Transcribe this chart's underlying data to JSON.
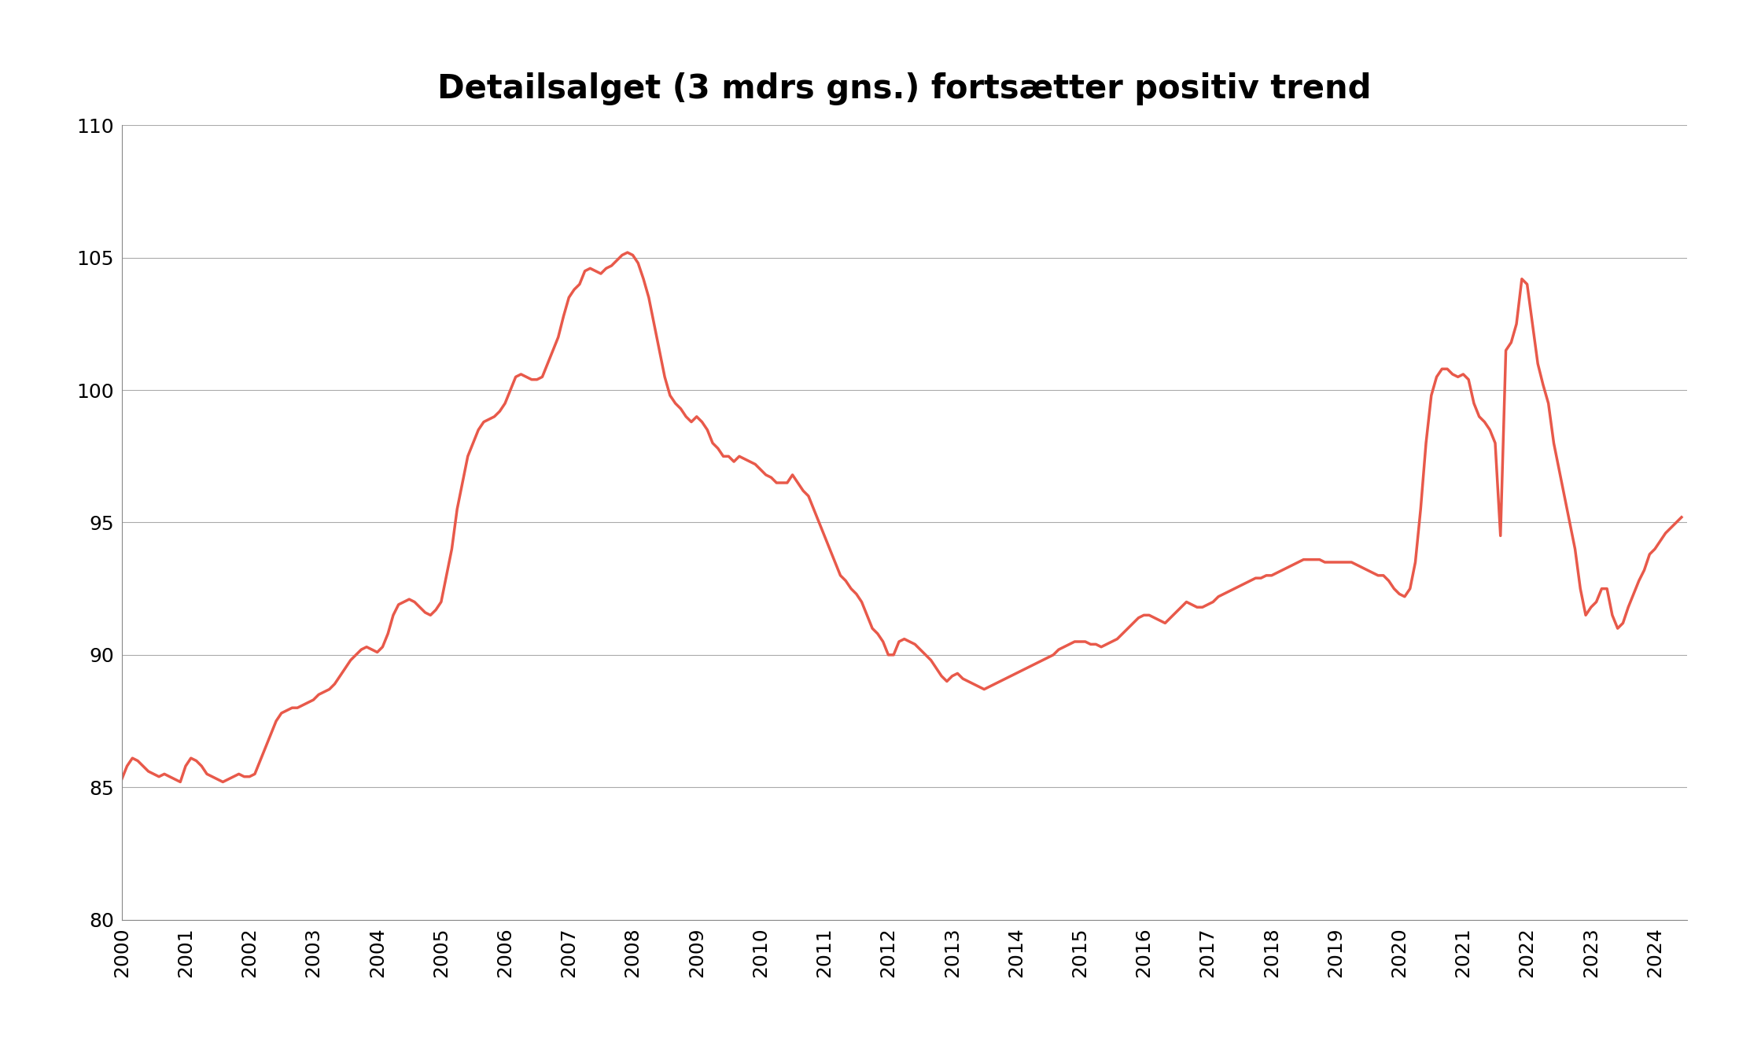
{
  "title": "Detailsalget (3 mdrs gns.) fortsætter positiv trend",
  "line_color": "#E8594A",
  "background_color": "#FFFFFF",
  "ylim": [
    80,
    110
  ],
  "yticks": [
    80,
    85,
    90,
    95,
    100,
    105,
    110
  ],
  "xlim_start": 2000.0,
  "xlim_end": 2024.5,
  "xtick_labels": [
    "2000",
    "2001",
    "2002",
    "2003",
    "2004",
    "2005",
    "2006",
    "2007",
    "2008",
    "2009",
    "2010",
    "2011",
    "2012",
    "2013",
    "2014",
    "2015",
    "2016",
    "2017",
    "2018",
    "2019",
    "2020",
    "2021",
    "2022",
    "2023",
    "2024"
  ],
  "title_fontsize": 30,
  "tick_fontsize": 18,
  "linewidth": 2.5,
  "series": [
    [
      2000.0,
      85.3
    ],
    [
      2000.083,
      85.8
    ],
    [
      2000.167,
      86.1
    ],
    [
      2000.25,
      86.0
    ],
    [
      2000.333,
      85.8
    ],
    [
      2000.417,
      85.6
    ],
    [
      2000.5,
      85.5
    ],
    [
      2000.583,
      85.4
    ],
    [
      2000.667,
      85.5
    ],
    [
      2000.75,
      85.4
    ],
    [
      2000.833,
      85.3
    ],
    [
      2000.917,
      85.2
    ],
    [
      2001.0,
      85.8
    ],
    [
      2001.083,
      86.1
    ],
    [
      2001.167,
      86.0
    ],
    [
      2001.25,
      85.8
    ],
    [
      2001.333,
      85.5
    ],
    [
      2001.417,
      85.4
    ],
    [
      2001.5,
      85.3
    ],
    [
      2001.583,
      85.2
    ],
    [
      2001.667,
      85.3
    ],
    [
      2001.75,
      85.4
    ],
    [
      2001.833,
      85.5
    ],
    [
      2001.917,
      85.4
    ],
    [
      2002.0,
      85.4
    ],
    [
      2002.083,
      85.5
    ],
    [
      2002.167,
      86.0
    ],
    [
      2002.25,
      86.5
    ],
    [
      2002.333,
      87.0
    ],
    [
      2002.417,
      87.5
    ],
    [
      2002.5,
      87.8
    ],
    [
      2002.583,
      87.9
    ],
    [
      2002.667,
      88.0
    ],
    [
      2002.75,
      88.0
    ],
    [
      2002.833,
      88.1
    ],
    [
      2002.917,
      88.2
    ],
    [
      2003.0,
      88.3
    ],
    [
      2003.083,
      88.5
    ],
    [
      2003.167,
      88.6
    ],
    [
      2003.25,
      88.7
    ],
    [
      2003.333,
      88.9
    ],
    [
      2003.417,
      89.2
    ],
    [
      2003.5,
      89.5
    ],
    [
      2003.583,
      89.8
    ],
    [
      2003.667,
      90.0
    ],
    [
      2003.75,
      90.2
    ],
    [
      2003.833,
      90.3
    ],
    [
      2003.917,
      90.2
    ],
    [
      2004.0,
      90.1
    ],
    [
      2004.083,
      90.3
    ],
    [
      2004.167,
      90.8
    ],
    [
      2004.25,
      91.5
    ],
    [
      2004.333,
      91.9
    ],
    [
      2004.417,
      92.0
    ],
    [
      2004.5,
      92.1
    ],
    [
      2004.583,
      92.0
    ],
    [
      2004.667,
      91.8
    ],
    [
      2004.75,
      91.6
    ],
    [
      2004.833,
      91.5
    ],
    [
      2004.917,
      91.7
    ],
    [
      2005.0,
      92.0
    ],
    [
      2005.083,
      93.0
    ],
    [
      2005.167,
      94.0
    ],
    [
      2005.25,
      95.5
    ],
    [
      2005.333,
      96.5
    ],
    [
      2005.417,
      97.5
    ],
    [
      2005.5,
      98.0
    ],
    [
      2005.583,
      98.5
    ],
    [
      2005.667,
      98.8
    ],
    [
      2005.75,
      98.9
    ],
    [
      2005.833,
      99.0
    ],
    [
      2005.917,
      99.2
    ],
    [
      2006.0,
      99.5
    ],
    [
      2006.083,
      100.0
    ],
    [
      2006.167,
      100.5
    ],
    [
      2006.25,
      100.6
    ],
    [
      2006.333,
      100.5
    ],
    [
      2006.417,
      100.4
    ],
    [
      2006.5,
      100.4
    ],
    [
      2006.583,
      100.5
    ],
    [
      2006.667,
      101.0
    ],
    [
      2006.75,
      101.5
    ],
    [
      2006.833,
      102.0
    ],
    [
      2006.917,
      102.8
    ],
    [
      2007.0,
      103.5
    ],
    [
      2007.083,
      103.8
    ],
    [
      2007.167,
      104.0
    ],
    [
      2007.25,
      104.5
    ],
    [
      2007.333,
      104.6
    ],
    [
      2007.417,
      104.5
    ],
    [
      2007.5,
      104.4
    ],
    [
      2007.583,
      104.6
    ],
    [
      2007.667,
      104.7
    ],
    [
      2007.75,
      104.9
    ],
    [
      2007.833,
      105.1
    ],
    [
      2007.917,
      105.2
    ],
    [
      2008.0,
      105.1
    ],
    [
      2008.083,
      104.8
    ],
    [
      2008.167,
      104.2
    ],
    [
      2008.25,
      103.5
    ],
    [
      2008.333,
      102.5
    ],
    [
      2008.417,
      101.5
    ],
    [
      2008.5,
      100.5
    ],
    [
      2008.583,
      99.8
    ],
    [
      2008.667,
      99.5
    ],
    [
      2008.75,
      99.3
    ],
    [
      2008.833,
      99.0
    ],
    [
      2008.917,
      98.8
    ],
    [
      2009.0,
      99.0
    ],
    [
      2009.083,
      98.8
    ],
    [
      2009.167,
      98.5
    ],
    [
      2009.25,
      98.0
    ],
    [
      2009.333,
      97.8
    ],
    [
      2009.417,
      97.5
    ],
    [
      2009.5,
      97.5
    ],
    [
      2009.583,
      97.3
    ],
    [
      2009.667,
      97.5
    ],
    [
      2009.75,
      97.4
    ],
    [
      2009.833,
      97.3
    ],
    [
      2009.917,
      97.2
    ],
    [
      2010.0,
      97.0
    ],
    [
      2010.083,
      96.8
    ],
    [
      2010.167,
      96.7
    ],
    [
      2010.25,
      96.5
    ],
    [
      2010.333,
      96.5
    ],
    [
      2010.417,
      96.5
    ],
    [
      2010.5,
      96.8
    ],
    [
      2010.583,
      96.5
    ],
    [
      2010.667,
      96.2
    ],
    [
      2010.75,
      96.0
    ],
    [
      2010.833,
      95.5
    ],
    [
      2010.917,
      95.0
    ],
    [
      2011.0,
      94.5
    ],
    [
      2011.083,
      94.0
    ],
    [
      2011.167,
      93.5
    ],
    [
      2011.25,
      93.0
    ],
    [
      2011.333,
      92.8
    ],
    [
      2011.417,
      92.5
    ],
    [
      2011.5,
      92.3
    ],
    [
      2011.583,
      92.0
    ],
    [
      2011.667,
      91.5
    ],
    [
      2011.75,
      91.0
    ],
    [
      2011.833,
      90.8
    ],
    [
      2011.917,
      90.5
    ],
    [
      2012.0,
      90.0
    ],
    [
      2012.083,
      90.0
    ],
    [
      2012.167,
      90.5
    ],
    [
      2012.25,
      90.6
    ],
    [
      2012.333,
      90.5
    ],
    [
      2012.417,
      90.4
    ],
    [
      2012.5,
      90.2
    ],
    [
      2012.583,
      90.0
    ],
    [
      2012.667,
      89.8
    ],
    [
      2012.75,
      89.5
    ],
    [
      2012.833,
      89.2
    ],
    [
      2012.917,
      89.0
    ],
    [
      2013.0,
      89.2
    ],
    [
      2013.083,
      89.3
    ],
    [
      2013.167,
      89.1
    ],
    [
      2013.25,
      89.0
    ],
    [
      2013.333,
      88.9
    ],
    [
      2013.417,
      88.8
    ],
    [
      2013.5,
      88.7
    ],
    [
      2013.583,
      88.8
    ],
    [
      2013.667,
      88.9
    ],
    [
      2013.75,
      89.0
    ],
    [
      2013.833,
      89.1
    ],
    [
      2013.917,
      89.2
    ],
    [
      2014.0,
      89.3
    ],
    [
      2014.083,
      89.4
    ],
    [
      2014.167,
      89.5
    ],
    [
      2014.25,
      89.6
    ],
    [
      2014.333,
      89.7
    ],
    [
      2014.417,
      89.8
    ],
    [
      2014.5,
      89.9
    ],
    [
      2014.583,
      90.0
    ],
    [
      2014.667,
      90.2
    ],
    [
      2014.75,
      90.3
    ],
    [
      2014.833,
      90.4
    ],
    [
      2014.917,
      90.5
    ],
    [
      2015.0,
      90.5
    ],
    [
      2015.083,
      90.5
    ],
    [
      2015.167,
      90.4
    ],
    [
      2015.25,
      90.4
    ],
    [
      2015.333,
      90.3
    ],
    [
      2015.417,
      90.4
    ],
    [
      2015.5,
      90.5
    ],
    [
      2015.583,
      90.6
    ],
    [
      2015.667,
      90.8
    ],
    [
      2015.75,
      91.0
    ],
    [
      2015.833,
      91.2
    ],
    [
      2015.917,
      91.4
    ],
    [
      2016.0,
      91.5
    ],
    [
      2016.083,
      91.5
    ],
    [
      2016.167,
      91.4
    ],
    [
      2016.25,
      91.3
    ],
    [
      2016.333,
      91.2
    ],
    [
      2016.417,
      91.4
    ],
    [
      2016.5,
      91.6
    ],
    [
      2016.583,
      91.8
    ],
    [
      2016.667,
      92.0
    ],
    [
      2016.75,
      91.9
    ],
    [
      2016.833,
      91.8
    ],
    [
      2016.917,
      91.8
    ],
    [
      2017.0,
      91.9
    ],
    [
      2017.083,
      92.0
    ],
    [
      2017.167,
      92.2
    ],
    [
      2017.25,
      92.3
    ],
    [
      2017.333,
      92.4
    ],
    [
      2017.417,
      92.5
    ],
    [
      2017.5,
      92.6
    ],
    [
      2017.583,
      92.7
    ],
    [
      2017.667,
      92.8
    ],
    [
      2017.75,
      92.9
    ],
    [
      2017.833,
      92.9
    ],
    [
      2017.917,
      93.0
    ],
    [
      2018.0,
      93.0
    ],
    [
      2018.083,
      93.1
    ],
    [
      2018.167,
      93.2
    ],
    [
      2018.25,
      93.3
    ],
    [
      2018.333,
      93.4
    ],
    [
      2018.417,
      93.5
    ],
    [
      2018.5,
      93.6
    ],
    [
      2018.583,
      93.6
    ],
    [
      2018.667,
      93.6
    ],
    [
      2018.75,
      93.6
    ],
    [
      2018.833,
      93.5
    ],
    [
      2018.917,
      93.5
    ],
    [
      2019.0,
      93.5
    ],
    [
      2019.083,
      93.5
    ],
    [
      2019.167,
      93.5
    ],
    [
      2019.25,
      93.5
    ],
    [
      2019.333,
      93.4
    ],
    [
      2019.417,
      93.3
    ],
    [
      2019.5,
      93.2
    ],
    [
      2019.583,
      93.1
    ],
    [
      2019.667,
      93.0
    ],
    [
      2019.75,
      93.0
    ],
    [
      2019.833,
      92.8
    ],
    [
      2019.917,
      92.5
    ],
    [
      2020.0,
      92.3
    ],
    [
      2020.083,
      92.2
    ],
    [
      2020.167,
      92.5
    ],
    [
      2020.25,
      93.5
    ],
    [
      2020.333,
      95.5
    ],
    [
      2020.417,
      98.0
    ],
    [
      2020.5,
      99.8
    ],
    [
      2020.583,
      100.5
    ],
    [
      2020.667,
      100.8
    ],
    [
      2020.75,
      100.8
    ],
    [
      2020.833,
      100.6
    ],
    [
      2020.917,
      100.5
    ],
    [
      2021.0,
      100.6
    ],
    [
      2021.083,
      100.4
    ],
    [
      2021.167,
      99.5
    ],
    [
      2021.25,
      99.0
    ],
    [
      2021.333,
      98.8
    ],
    [
      2021.417,
      98.5
    ],
    [
      2021.5,
      98.0
    ],
    [
      2021.583,
      94.5
    ],
    [
      2021.667,
      101.5
    ],
    [
      2021.75,
      101.8
    ],
    [
      2021.833,
      102.5
    ],
    [
      2021.917,
      104.2
    ],
    [
      2022.0,
      104.0
    ],
    [
      2022.083,
      102.5
    ],
    [
      2022.167,
      101.0
    ],
    [
      2022.25,
      100.2
    ],
    [
      2022.333,
      99.5
    ],
    [
      2022.417,
      98.0
    ],
    [
      2022.5,
      97.0
    ],
    [
      2022.583,
      96.0
    ],
    [
      2022.667,
      95.0
    ],
    [
      2022.75,
      94.0
    ],
    [
      2022.833,
      92.5
    ],
    [
      2022.917,
      91.5
    ],
    [
      2023.0,
      91.8
    ],
    [
      2023.083,
      92.0
    ],
    [
      2023.167,
      92.5
    ],
    [
      2023.25,
      92.5
    ],
    [
      2023.333,
      91.5
    ],
    [
      2023.417,
      91.0
    ],
    [
      2023.5,
      91.2
    ],
    [
      2023.583,
      91.8
    ],
    [
      2023.667,
      92.3
    ],
    [
      2023.75,
      92.8
    ],
    [
      2023.833,
      93.2
    ],
    [
      2023.917,
      93.8
    ],
    [
      2024.0,
      94.0
    ],
    [
      2024.083,
      94.3
    ],
    [
      2024.167,
      94.6
    ],
    [
      2024.25,
      94.8
    ],
    [
      2024.333,
      95.0
    ],
    [
      2024.417,
      95.2
    ]
  ]
}
